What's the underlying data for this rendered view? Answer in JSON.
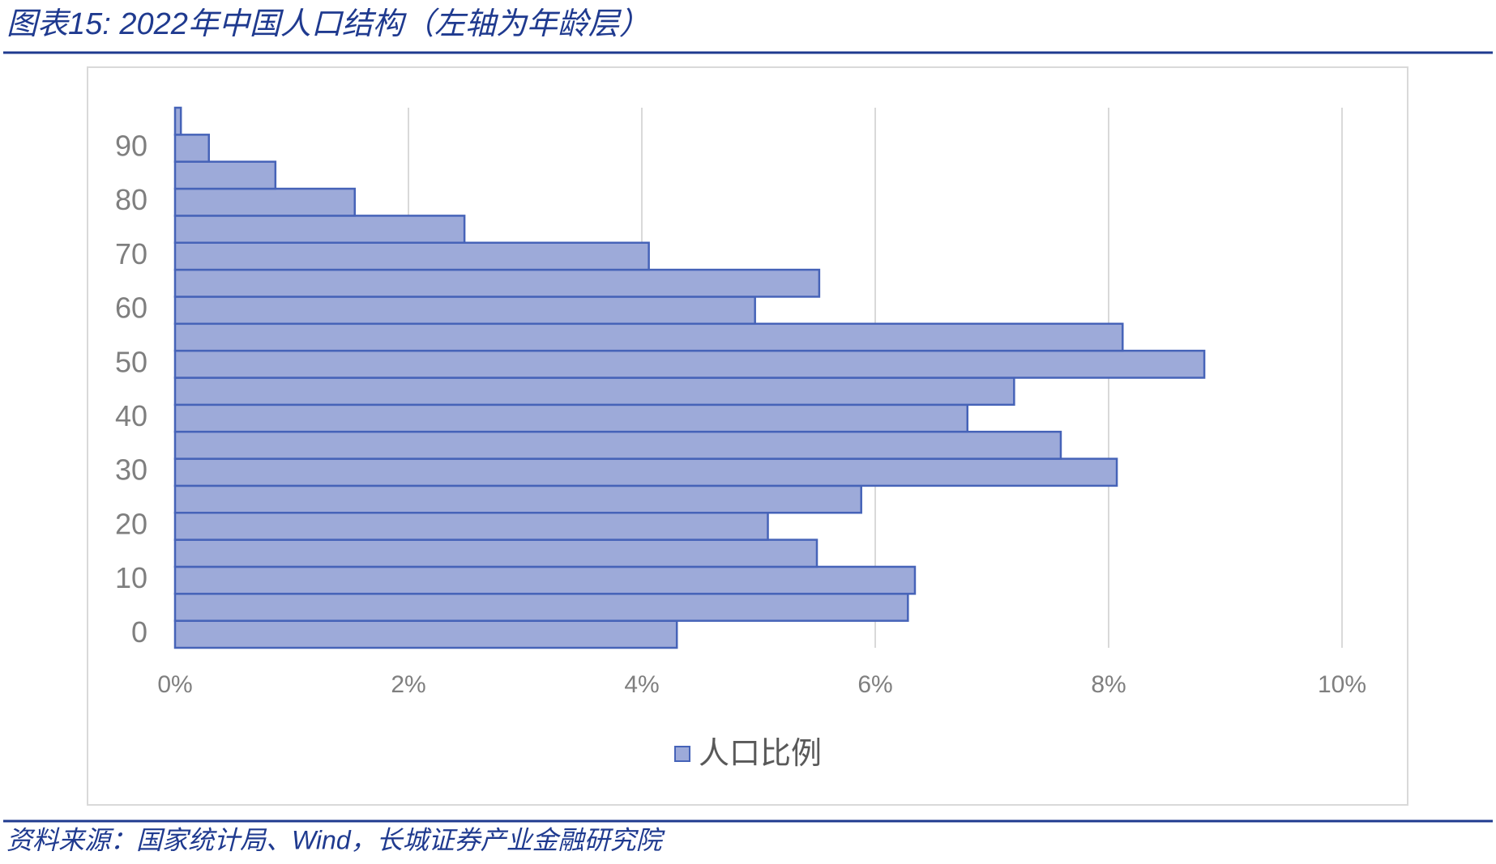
{
  "header": {
    "title": "图表15:  2022年中国人口结构（左轴为年龄层）"
  },
  "chart_data": {
    "type": "bar",
    "orientation": "horizontal",
    "categories": [
      "0",
      null,
      "10",
      null,
      "20",
      null,
      "30",
      null,
      "40",
      null,
      "50",
      null,
      "60",
      null,
      "70",
      null,
      "80",
      null,
      "90",
      null
    ],
    "series": [
      {
        "name": "人口比例",
        "color": "#9daad9",
        "edge_color": "#4663b8",
        "values": [
          4.3,
          6.28,
          6.34,
          5.5,
          5.08,
          5.88,
          8.07,
          7.59,
          6.79,
          7.19,
          8.82,
          8.12,
          4.97,
          5.52,
          4.06,
          2.48,
          1.54,
          0.86,
          0.29,
          0.05
        ]
      }
    ],
    "xlim": [
      0,
      10
    ],
    "xticks": [
      {
        "value": 0,
        "label": "0%"
      },
      {
        "value": 2,
        "label": "2%"
      },
      {
        "value": 4,
        "label": "4%"
      },
      {
        "value": 6,
        "label": "6%"
      },
      {
        "value": 8,
        "label": "8%"
      },
      {
        "value": 10,
        "label": "10%"
      }
    ],
    "grid": true,
    "legend": "bottom"
  },
  "footer": {
    "source": "资料来源：国家统计局、Wind，长城证券产业金融研究院"
  }
}
